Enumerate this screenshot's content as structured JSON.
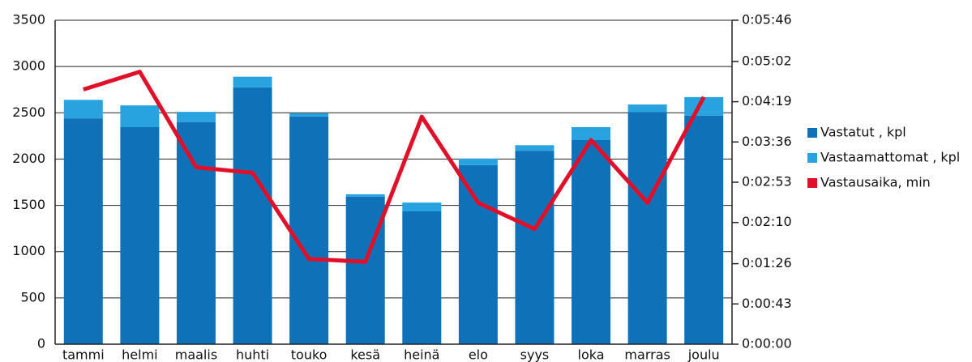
{
  "chart_data": {
    "type": "bar",
    "categories": [
      "tammi",
      "helmi",
      "maalis",
      "huhti",
      "touko",
      "kesä",
      "heinä",
      "elo",
      "syys",
      "loka",
      "marras",
      "joulu"
    ],
    "series": [
      {
        "name": "Vastatut , kpl",
        "color": "#0f72b8",
        "type": "bar",
        "values": [
          2440,
          2345,
          2400,
          2775,
          2460,
          1595,
          1435,
          1935,
          2090,
          2205,
          2510,
          2470
        ]
      },
      {
        "name": "Vastaamattomat , kpl",
        "color": "#29a3e0",
        "type": "bar",
        "values": [
          200,
          235,
          110,
          115,
          35,
          25,
          95,
          70,
          60,
          140,
          80,
          200
        ]
      },
      {
        "name": "Vastausaika, min",
        "color": "#e0102a",
        "type": "line",
        "axis": "y2",
        "values": [
          272,
          291,
          189,
          183,
          91,
          88,
          243,
          151,
          123,
          218,
          151,
          264
        ]
      }
    ],
    "stacked": true,
    "ylim": [
      0,
      3500
    ],
    "yticks": [
      0,
      500,
      1000,
      1500,
      2000,
      2500,
      3000,
      3500
    ],
    "y2lim": [
      0,
      346
    ],
    "y2ticks": [
      {
        "value": 0,
        "label": "0:00:00"
      },
      {
        "value": 43,
        "label": "0:00:43"
      },
      {
        "value": 86,
        "label": "0:01:26"
      },
      {
        "value": 130,
        "label": "0:02:10"
      },
      {
        "value": 173,
        "label": "0:02:53"
      },
      {
        "value": 216,
        "label": "0:03:36"
      },
      {
        "value": 259,
        "label": "0:04:19"
      },
      {
        "value": 302,
        "label": "0:05:02"
      },
      {
        "value": 346,
        "label": "0:05:46"
      }
    ],
    "grid": true,
    "legend": "right"
  }
}
